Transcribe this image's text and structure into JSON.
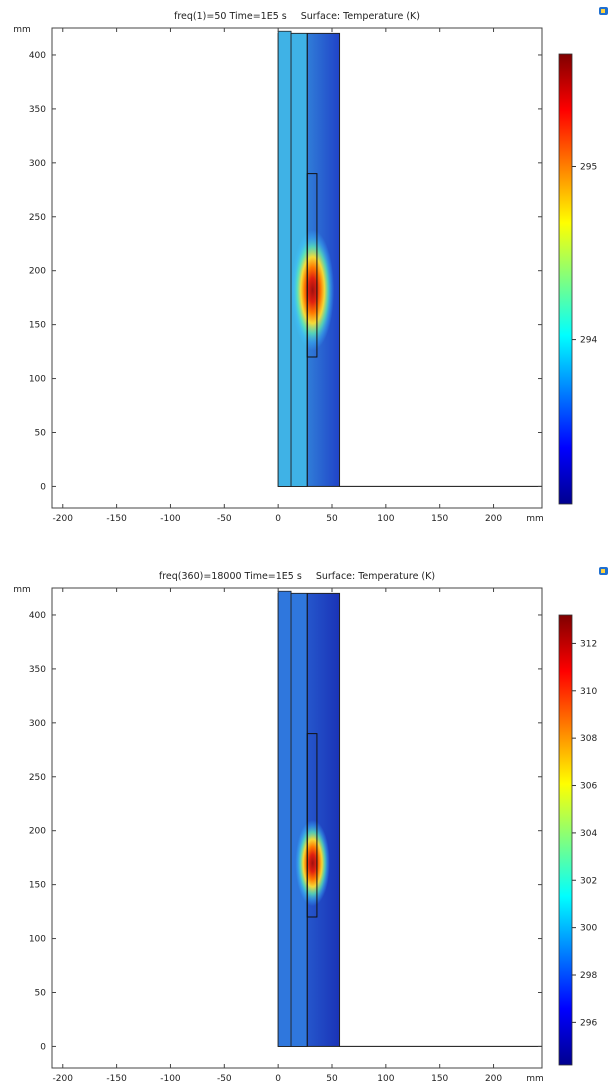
{
  "chart_data": [
    {
      "type": "heatmap",
      "title": "freq(1)=50 Time=1E5 s",
      "subtitle": "Surface: Temperature (K)",
      "x_unit": "mm",
      "y_unit": "mm",
      "xlim": [
        -210,
        245
      ],
      "ylim": [
        -20,
        425
      ],
      "x_ticks": [
        -200,
        -150,
        -100,
        -50,
        0,
        50,
        100,
        150,
        200
      ],
      "y_ticks": [
        0,
        50,
        100,
        150,
        200,
        250,
        300,
        350,
        400
      ],
      "geometry": {
        "outer_block": {
          "x": [
            0,
            57
          ],
          "y": [
            0,
            420
          ]
        },
        "strips": [
          {
            "x": [
              0,
              12
            ],
            "y": [
              0,
              422
            ]
          },
          {
            "x": [
              12,
              27
            ],
            "y": [
              0,
              420
            ]
          }
        ],
        "divider_x": 27,
        "inner_slot": {
          "x": [
            27,
            36
          ],
          "y": [
            120,
            290
          ]
        },
        "baseline": {
          "x": [
            57,
            245
          ],
          "y": 0
        }
      },
      "hotspot": {
        "x": 32,
        "y": 182,
        "rx": 20,
        "ry": 56
      },
      "colorbar": {
        "min": 293.05,
        "max": 295.65,
        "ticks": [
          294,
          295
        ]
      },
      "colors": {
        "strip": "#3fb2e6",
        "cold": "#2043c8",
        "hot": "#a01010"
      }
    },
    {
      "type": "heatmap",
      "title": "freq(360)=18000 Time=1E5 s",
      "subtitle": "Surface: Temperature (K)",
      "x_unit": "mm",
      "y_unit": "mm",
      "xlim": [
        -210,
        245
      ],
      "ylim": [
        -20,
        425
      ],
      "x_ticks": [
        -200,
        -150,
        -100,
        -50,
        0,
        50,
        100,
        150,
        200
      ],
      "y_ticks": [
        0,
        50,
        100,
        150,
        200,
        250,
        300,
        350,
        400
      ],
      "geometry": {
        "outer_block": {
          "x": [
            0,
            57
          ],
          "y": [
            0,
            420
          ]
        },
        "strips": [
          {
            "x": [
              0,
              12
            ],
            "y": [
              0,
              422
            ]
          },
          {
            "x": [
              12,
              27
            ],
            "y": [
              0,
              420
            ]
          }
        ],
        "divider_x": 27,
        "inner_slot": {
          "x": [
            27,
            36
          ],
          "y": [
            120,
            290
          ]
        },
        "baseline": {
          "x": [
            57,
            245
          ],
          "y": 0
        }
      },
      "hotspot": {
        "x": 32,
        "y": 170,
        "rx": 16,
        "ry": 40
      },
      "colorbar": {
        "min": 294.2,
        "max": 313.2,
        "ticks": [
          296,
          298,
          300,
          302,
          304,
          306,
          308,
          310,
          312
        ]
      },
      "colors": {
        "strip": "#2f77dd",
        "cold": "#1a33b8",
        "hot": "#a01010"
      }
    }
  ]
}
